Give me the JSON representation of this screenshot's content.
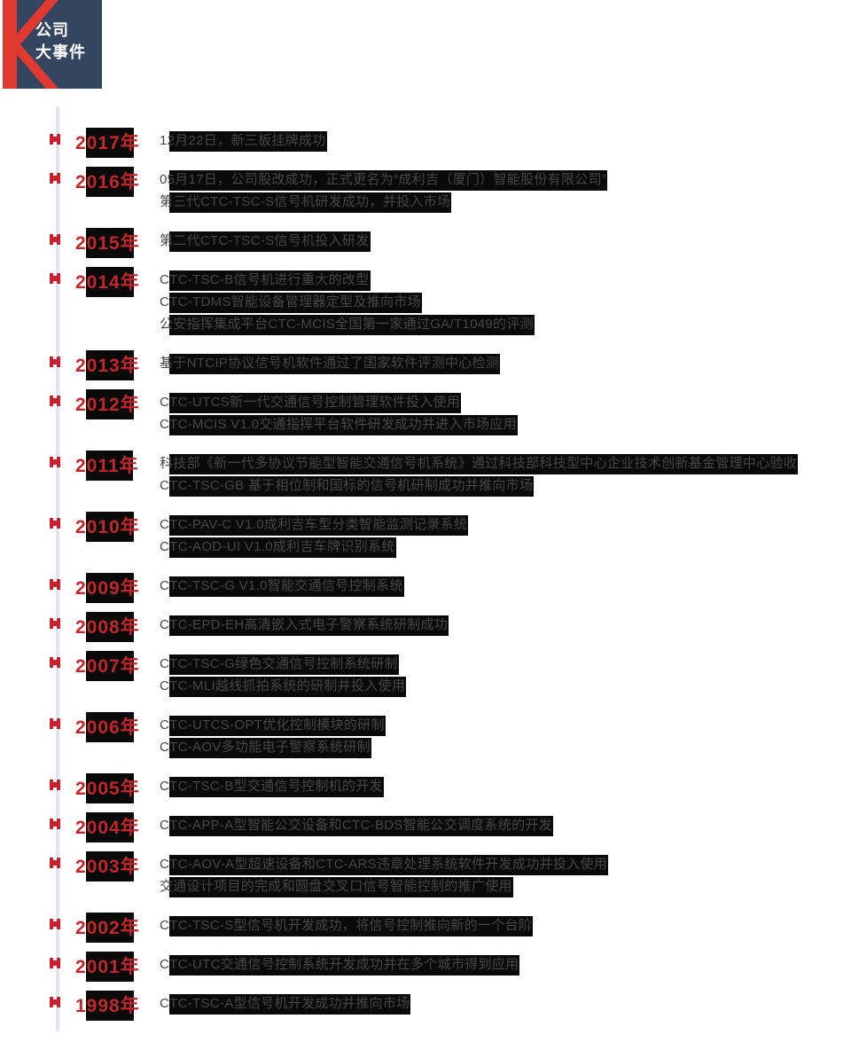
{
  "header": {
    "title_line1": "公司",
    "title_line2": "大事件",
    "logo": "k-mark"
  },
  "colors": {
    "badge_navy": "#344560",
    "logo_red": "#e03a30",
    "marker_red": "#c9202e",
    "year_red": "#c2262b",
    "spine_blue": "#dde4f2",
    "highlight_black": "#0a0a0a",
    "event_text_gray": "#464646"
  },
  "timeline": {
    "items": [
      {
        "year": "2017年",
        "events": [
          "12月22日，新三板挂牌成功"
        ]
      },
      {
        "year": "2016年",
        "events": [
          "05月17日，公司股改成功，正式更名为“成利吉（厦门）智能股份有限公司”",
          "第三代CTC-TSC-S信号机研发成功，并投入市场"
        ]
      },
      {
        "year": "2015年",
        "events": [
          "第二代CTC-TSC-S信号机投入研发"
        ]
      },
      {
        "year": "2014年",
        "events": [
          "CTC-TSC-B信号机进行重大的改型",
          "CTC-TDMS智能设备管理器定型及推向市场",
          "公安指挥集成平台CTC-MCIS全国第一家通过GA/T1049的评测"
        ]
      },
      {
        "year": "2013年",
        "events": [
          "基于NTCIP协议信号机软件通过了国家软件评测中心检测"
        ]
      },
      {
        "year": "2012年",
        "events": [
          "CTC-UTCS新一代交通信号控制管理软件投入使用",
          "CTC-MCIS V1.0交通指挥平台软件研发成功并进入市场应用"
        ]
      },
      {
        "year": "2011年",
        "events": [
          "科技部《新一代多协议节能型智能交通信号机系统》通过科技部科技型中心企业技术创新基金管理中心验收",
          "CTC-TSC-GB 基于相位制和国标的信号机研制成功并推向市场"
        ]
      },
      {
        "year": "2010年",
        "events": [
          "CTC-PAV-C V1.0成利吉车型分类智能监测记录系统",
          "CTC-AOD-UI V1.0成利吉车牌识别系统"
        ]
      },
      {
        "year": "2009年",
        "events": [
          "CTC-TSC-G V1.0智能交通信号控制系统"
        ]
      },
      {
        "year": "2008年",
        "events": [
          "CTC-EPD-EH高清嵌入式电子警察系统研制成功"
        ]
      },
      {
        "year": "2007年",
        "events": [
          "CTC-TSC-G绿色交通信号控制系统研制",
          "CTC-MLI越线抓拍系统的研制并投入使用"
        ]
      },
      {
        "year": "2006年",
        "events": [
          "CTC-UTCS-OPT优化控制模块的研制",
          "CTC-AOV多功能电子警察系统研制"
        ]
      },
      {
        "year": "2005年",
        "events": [
          "CTC-TSC-B型交通信号控制机的开发"
        ]
      },
      {
        "year": "2004年",
        "events": [
          "CTC-APP-A型智能公交设备和CTC-BDS智能公交调度系统的开发"
        ]
      },
      {
        "year": "2003年",
        "events": [
          "CTC-AOV-A型超速设备和CTC-ARS违章处理系统软件开发成功并投入使用",
          "交通设计项目的完成和圆盘交叉口信号智能控制的推广使用"
        ]
      },
      {
        "year": "2002年",
        "events": [
          "CTC-TSC-S型信号机开发成功，将信号控制推向新的一个台阶"
        ]
      },
      {
        "year": "2001年",
        "events": [
          "CTC-UTC交通信号控制系统开发成功并在多个城市得到应用"
        ]
      },
      {
        "year": "1998年",
        "events": [
          "CTC-TSC-A型信号机开发成功并推向市场"
        ]
      }
    ]
  }
}
